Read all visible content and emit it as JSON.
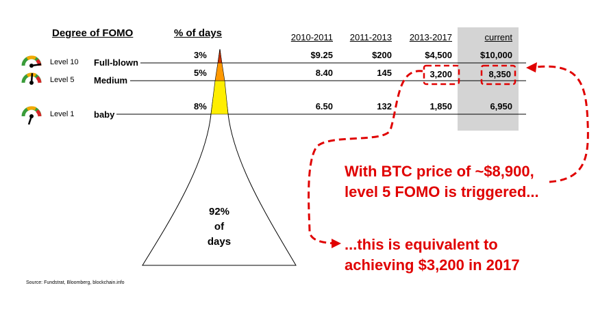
{
  "headers": {
    "degree": "Degree of FOMO",
    "pct_days": "% of days",
    "periods": [
      "2010-2011",
      "2011-2013",
      "2013-2017",
      "current"
    ]
  },
  "levels": [
    {
      "level": "Level 10",
      "name": "Full-blown",
      "pct": "3%",
      "values": [
        "$9.25",
        "$200",
        "$4,500",
        "$10,000"
      ],
      "gauge_color": "#d9262a"
    },
    {
      "level": "Level 5",
      "name": "Medium",
      "pct": "5%",
      "values": [
        "8.40",
        "145",
        "3,200",
        "8,350"
      ],
      "gauge_color": "#f2a900"
    },
    {
      "level": "Level 1",
      "name": "baby",
      "pct": "8%",
      "values": [
        "6.50",
        "132",
        "1,850",
        "6,950"
      ],
      "gauge_color": "#3a9c3a"
    }
  ],
  "funnel": {
    "bottom_label": [
      "92%",
      "of",
      "days"
    ],
    "colors": {
      "top": "#cc3300",
      "mid": "#ff9900",
      "low": "#ffee00"
    }
  },
  "callouts": {
    "main": [
      "With BTC price of ~$8,900,",
      "level 5 FOMO is triggered..."
    ],
    "secondary": [
      "...this is equivalent to",
      "achieving $3,200 in 2017"
    ],
    "color": "#e00000"
  },
  "source": "Source: Fundstrat, Bloomberg, blockchain.info"
}
